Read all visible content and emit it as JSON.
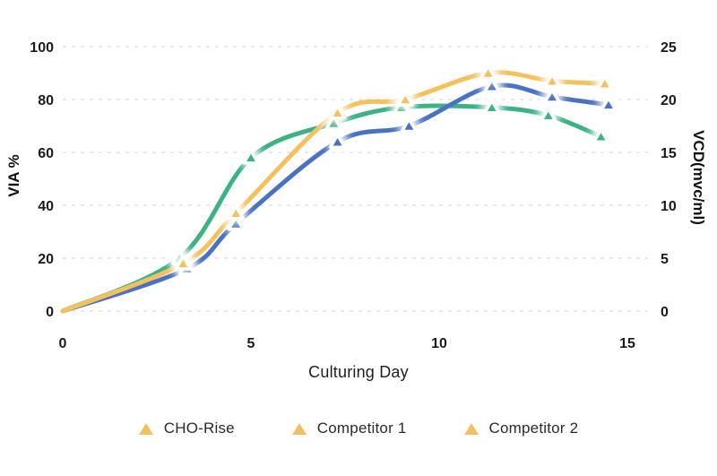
{
  "chart_data": {
    "type": "line",
    "title": "",
    "xlabel": "Culturing Day",
    "ylabel_left": "VIA %",
    "ylabel_right": "VCD(mvc/ml)",
    "x_ticks": [
      0,
      5,
      10,
      15
    ],
    "y_left_ticks": [
      0,
      20,
      40,
      60,
      80,
      100
    ],
    "y_right_ticks": [
      0,
      5,
      10,
      15,
      20,
      25
    ],
    "x_range": [
      0,
      15.5
    ],
    "y_left_range": [
      0,
      100
    ],
    "y_right_range": [
      0,
      25
    ],
    "grid": "horizontal-dashed",
    "axis_note": "dual axis: left VIA % 0-100 aligns with right VCD 0-25 (VCD = VIA/4)",
    "marker": "triangle-up, series-color fill, white border, soft white glow",
    "colors": {
      "grid": "#E2E2E2",
      "text": "#1b1b1b",
      "legend_marker": "#F2C063",
      "background": "#ffffff"
    },
    "series": [
      {
        "name": "Competitor 2",
        "color": "#3CB285",
        "points": [
          {
            "day": 0,
            "via": 0
          },
          {
            "day": 3.1,
            "via": 20
          },
          {
            "day": 5.0,
            "via": 58
          },
          {
            "day": 7.2,
            "via": 71
          },
          {
            "day": 9.0,
            "via": 77
          },
          {
            "day": 11.4,
            "via": 77
          },
          {
            "day": 12.9,
            "via": 74
          },
          {
            "day": 14.3,
            "via": 66
          }
        ]
      },
      {
        "name": "Competitor 1",
        "color": "#4A72C4",
        "points": [
          {
            "day": 0,
            "via": 0
          },
          {
            "day": 3.3,
            "via": 16
          },
          {
            "day": 4.6,
            "via": 33
          },
          {
            "day": 7.3,
            "via": 64
          },
          {
            "day": 9.2,
            "via": 70
          },
          {
            "day": 11.4,
            "via": 85
          },
          {
            "day": 13.0,
            "via": 81
          },
          {
            "day": 14.5,
            "via": 78
          }
        ]
      },
      {
        "name": "CHO-Rise",
        "color": "#F5C15D",
        "points": [
          {
            "day": 0,
            "via": 0
          },
          {
            "day": 3.2,
            "via": 18
          },
          {
            "day": 4.6,
            "via": 37
          },
          {
            "day": 7.3,
            "via": 75
          },
          {
            "day": 9.1,
            "via": 80
          },
          {
            "day": 11.3,
            "via": 90
          },
          {
            "day": 13.0,
            "via": 87
          },
          {
            "day": 14.4,
            "via": 86
          }
        ]
      }
    ],
    "legend": [
      {
        "label": "CHO-Rise",
        "marker_color": "#F2C063"
      },
      {
        "label": "Competitor 1",
        "marker_color": "#F2C063"
      },
      {
        "label": "Competitor 2",
        "marker_color": "#F2C063"
      }
    ]
  }
}
